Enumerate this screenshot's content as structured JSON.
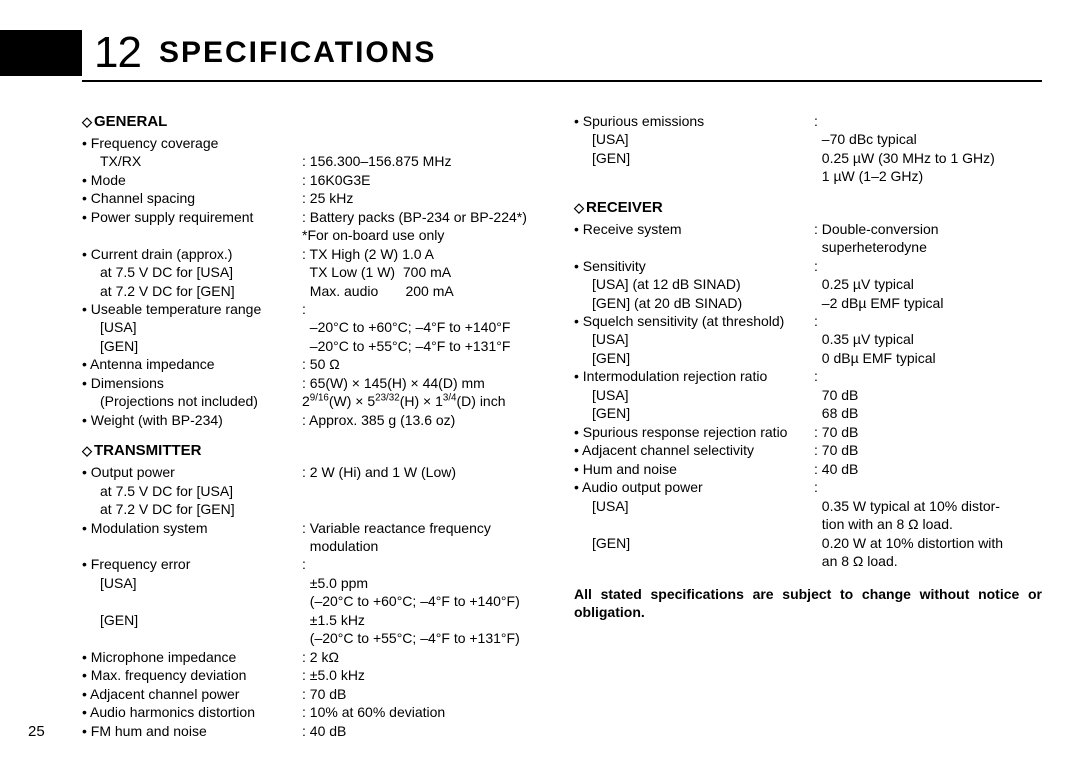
{
  "page_number": "25",
  "chapter_number": "12",
  "chapter_title": "SPECIFICATIONS",
  "colors": {
    "text": "#000000",
    "bg": "#ffffff"
  },
  "sections": {
    "general": {
      "title": "GENERAL",
      "freq_coverage_label": "• Frequency coverage",
      "txrx_label": "TX/RX",
      "txrx_val": ": 156.300–156.875 MHz",
      "mode_label": "• Mode",
      "mode_val": ": 16K0G3E",
      "chspacing_label": "• Channel spacing",
      "chspacing_val": ": 25 kHz",
      "psu_label": "• Power supply requirement",
      "psu_val1": ": Battery packs (BP-234 or BP-224*)",
      "psu_val2": "*For on-board use only",
      "drain_label": "• Current drain (approx.)",
      "drain_val1": ": TX High (2 W)  1.0 A",
      "drain_sub1": "at 7.5 V DC for [USA]",
      "drain_val2": "  TX Low (1 W)  700 mA",
      "drain_sub2": "at 7.2 V DC for [GEN]",
      "drain_val3": "  Max. audio       200 mA",
      "temp_label": "• Useable temperature range",
      "temp_val": ":",
      "temp_usa_l": "[USA]",
      "temp_usa_v": "  –20°C to +60°C; –4°F to +140°F",
      "temp_gen_l": "[GEN]",
      "temp_gen_v": "  –20°C to +55°C; –4°F to +131°F",
      "ant_label": "• Antenna impedance",
      "ant_val": ": 50 Ω",
      "dim_label": "• Dimensions",
      "dim_val": ": 65(W) × 145(H) × 44(D) mm",
      "dim_sub_l": "(Projections not included)",
      "weight_label": "• Weight (with BP-234)",
      "weight_val": ": Approx. 385 g (13.6 oz)"
    },
    "transmitter": {
      "title": "TRANSMITTER",
      "out_label": "• Output power",
      "out_val": ": 2 W (Hi) and 1 W (Low)",
      "out_sub1": "at 7.5 V DC for [USA]",
      "out_sub2": "at 7.2 V DC for [GEN]",
      "mod_label": "• Modulation system",
      "mod_val1": ": Variable reactance frequency",
      "mod_val2": "  modulation",
      "ferr_label": "• Frequency error",
      "ferr_c": ":",
      "ferr_usa_l": "[USA]",
      "ferr_usa_v1": "  ±5.0 ppm",
      "ferr_usa_v2": "  (–20°C to +60°C; –4°F to +140°F)",
      "ferr_gen_l": "[GEN]",
      "ferr_gen_v1": "  ±1.5 kHz",
      "ferr_gen_v2": "  (–20°C to +55°C; –4°F to +131°F)",
      "mic_label": "• Microphone impedance",
      "mic_val": ": 2 kΩ",
      "maxdev_label": "• Max. frequency deviation",
      "maxdev_val": ": ±5.0 kHz",
      "adjch_label": "• Adjacent channel power",
      "adjch_val": ": 70 dB",
      "harm_label": "• Audio harmonics distortion",
      "harm_val": ": 10% at 60% deviation",
      "hum_label": "• FM hum and noise",
      "hum_val": ": 40 dB"
    },
    "spurious": {
      "label": "• Spurious emissions",
      "c": ":",
      "usa_l": "[USA]",
      "usa_v": "  –70 dBc typical",
      "gen_l": "[GEN]",
      "gen_v1": "  0.25 µW (30 MHz to 1 GHz)",
      "gen_v2": "  1 µW (1–2 GHz)"
    },
    "receiver": {
      "title": "RECEIVER",
      "sys_label": "• Receive system",
      "sys_val1": ": Double-conversion",
      "sys_val2": "  superheterodyne",
      "sens_label": "• Sensitivity",
      "sens_c": ":",
      "sens_usa_l": "[USA] (at 12 dB SINAD)",
      "sens_usa_v": "  0.25 µV typical",
      "sens_gen_l": "[GEN] (at 20 dB SINAD)",
      "sens_gen_v": "  –2 dBµ EMF typical",
      "sq_label": "• Squelch sensitivity (at threshold)",
      "sq_c": ":",
      "sq_usa_l": "[USA]",
      "sq_usa_v": "  0.35 µV typical",
      "sq_gen_l": "[GEN]",
      "sq_gen_v": "  0 dBµ EMF typical",
      "im_label": "• Intermodulation rejection ratio",
      "im_c": ":",
      "im_usa_l": "[USA]",
      "im_usa_v": "  70 dB",
      "im_gen_l": "[GEN]",
      "im_gen_v": "  68 dB",
      "spr_label": "• Spurious response rejection ratio",
      "spr_val": ": 70 dB",
      "adj_label": "• Adjacent channel selectivity",
      "adj_val": ": 70 dB",
      "hum_label": "• Hum and noise",
      "hum_val": ": 40 dB",
      "audio_label": "• Audio output power",
      "audio_c": ":",
      "audio_usa_l": "[USA]",
      "audio_usa_v1": "  0.35 W typical at 10% distor-",
      "audio_usa_v2": "  tion with an 8 Ω load.",
      "audio_gen_l": "[GEN]",
      "audio_gen_v1": "  0.20 W at 10% distortion with",
      "audio_gen_v2": "  an 8 Ω load."
    }
  },
  "footnote": "All stated specifications are subject to change without notice or obligation."
}
